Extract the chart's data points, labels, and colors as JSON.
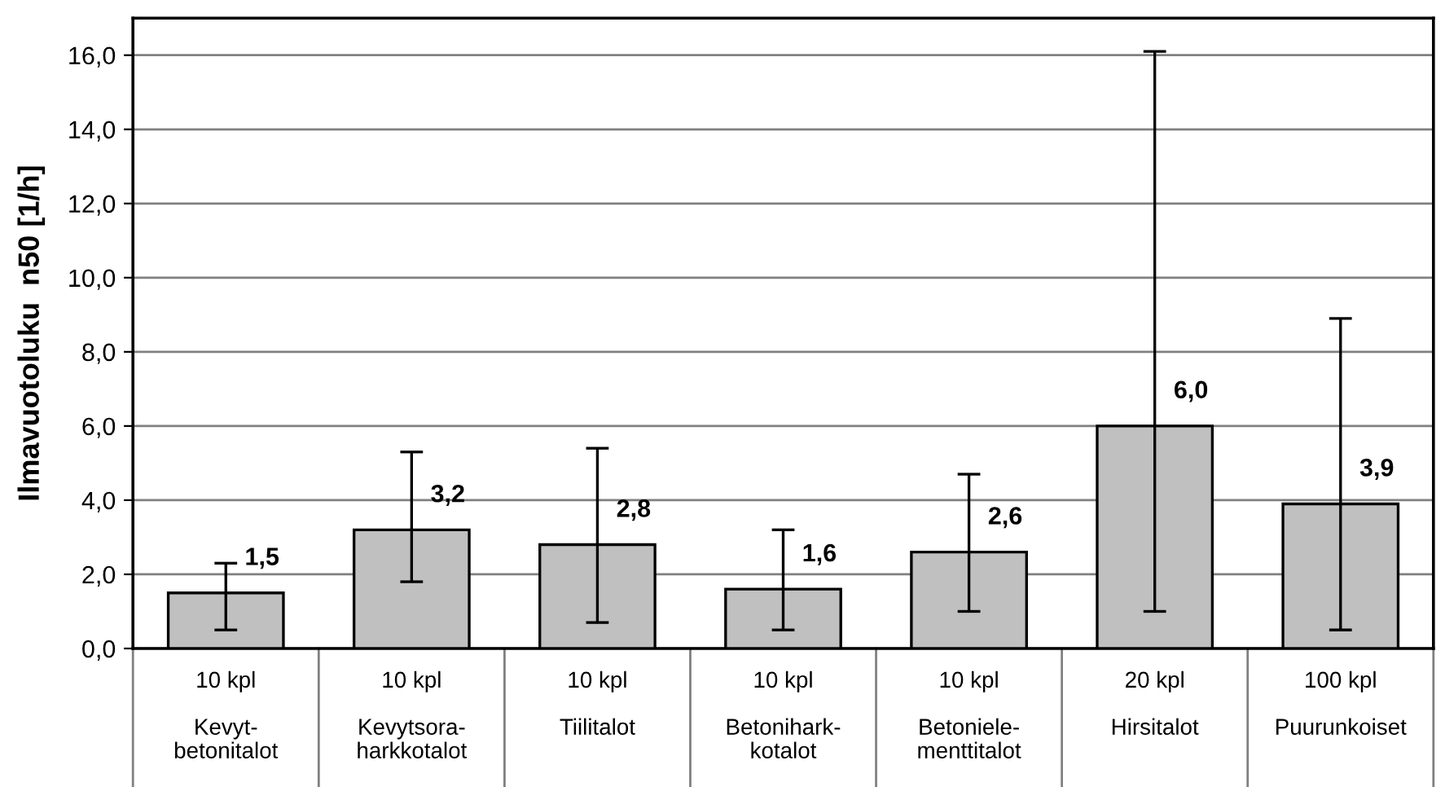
{
  "chart_data": {
    "type": "bar",
    "ylabel": "Ilmavuotoluku  n50 [1/h]",
    "categories": [
      "10 kpl\n\nKevyt-\nbetonitalot",
      "10 kpl\n\nKevytsora-\nharkkotalot",
      "10 kpl\n\nTiilitalot",
      "10 kpl\n\nBetonihark-\nkotalot",
      "10 kpl\n\nBetoniele-\nmenttitalot",
      "20 kpl\n\nHirsitalot",
      "100 kpl\n\nPuurunkoiset"
    ],
    "values": [
      1.5,
      3.2,
      2.8,
      1.6,
      2.6,
      6.0,
      3.9
    ],
    "value_labels": [
      "1,5",
      "3,2",
      "2,8",
      "1,6",
      "2,6",
      "6,0",
      "3,9"
    ],
    "errors": [
      [
        0.5,
        2.3
      ],
      [
        1.8,
        5.3
      ],
      [
        0.7,
        5.4
      ],
      [
        0.5,
        3.2
      ],
      [
        1.0,
        4.7
      ],
      [
        1.0,
        16.1
      ],
      [
        0.5,
        8.9
      ]
    ],
    "color": "#c0c0c0",
    "ylim": [
      0,
      17
    ],
    "yticks": [
      {
        "value": 0,
        "label": "0,0"
      },
      {
        "value": 2,
        "label": "2,0"
      },
      {
        "value": 4,
        "label": "4,0"
      },
      {
        "value": 6,
        "label": "6,0"
      },
      {
        "value": 8,
        "label": "8,0"
      },
      {
        "value": 10,
        "label": "10,0"
      },
      {
        "value": 12,
        "label": "12,0"
      },
      {
        "value": 14,
        "label": "14,0"
      },
      {
        "value": 16,
        "label": "16,0"
      }
    ],
    "grid": "y"
  }
}
